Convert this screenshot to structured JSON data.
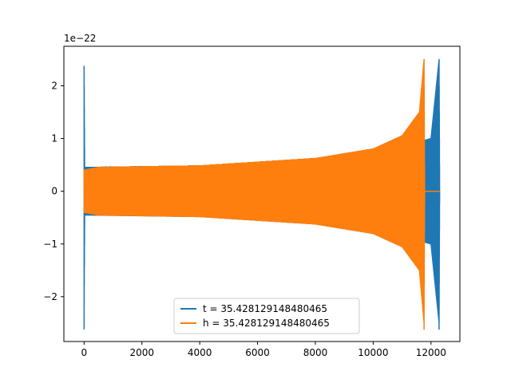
{
  "chart_data": {
    "type": "line",
    "title": "",
    "xlabel": "",
    "ylabel": "",
    "offset_text": "1e−22",
    "scale": 1e-22,
    "xlim": [
      -700,
      13000
    ],
    "ylim": [
      -2.85e-22,
      2.75e-22
    ],
    "xticks": [
      0,
      2000,
      4000,
      6000,
      8000,
      10000,
      12000
    ],
    "xtick_labels": [
      "0",
      "2000",
      "4000",
      "6000",
      "8000",
      "10000",
      "12000"
    ],
    "yticks": [
      -2e-22,
      -1e-22,
      0,
      1e-22,
      2e-22
    ],
    "ytick_labels": [
      "−2",
      "−1",
      "0",
      "1",
      "2"
    ],
    "grid": false,
    "legend_position": "lower center",
    "series": [
      {
        "name": "t = 35.428129148480465",
        "color": "#1f77b4",
        "description": "chirp waveform: short burst near x=0 (amplitude ~2.4e-22), steady oscillation amplitude ~0.45e-22 from x~20 to ~11750 growing toward merger, ringdown band ~11760-12300 with peak 2.5e-22 at x~12280",
        "envelope_points": [
          [
            0,
            2.38e-22
          ],
          [
            20,
            4.5e-23
          ],
          [
            4000,
            4.8e-23
          ],
          [
            8000,
            6.2e-23
          ],
          [
            10000,
            8e-23
          ],
          [
            11000,
            1.05e-22
          ],
          [
            11700,
            9.5e-23
          ],
          [
            12000,
            1e-22
          ],
          [
            12280,
            2.5e-22
          ],
          [
            12300,
            0
          ]
        ]
      },
      {
        "name": "h = 35.428129148480465",
        "color": "#ff7f0e",
        "description": "chirp waveform: flat near zero to x~500, oscillation amplitude ~0.45e-22 rising to merger peak 2.5e-22 at x~11760, then flat at 0 to x~12300",
        "envelope_points": [
          [
            0,
            4e-23
          ],
          [
            500,
            4.5e-23
          ],
          [
            4000,
            4.8e-23
          ],
          [
            8000,
            6.2e-23
          ],
          [
            10000,
            8e-23
          ],
          [
            11000,
            1.05e-22
          ],
          [
            11600,
            1.5e-22
          ],
          [
            11760,
            2.5e-22
          ],
          [
            11780,
            0
          ],
          [
            12300,
            0
          ]
        ]
      }
    ]
  }
}
